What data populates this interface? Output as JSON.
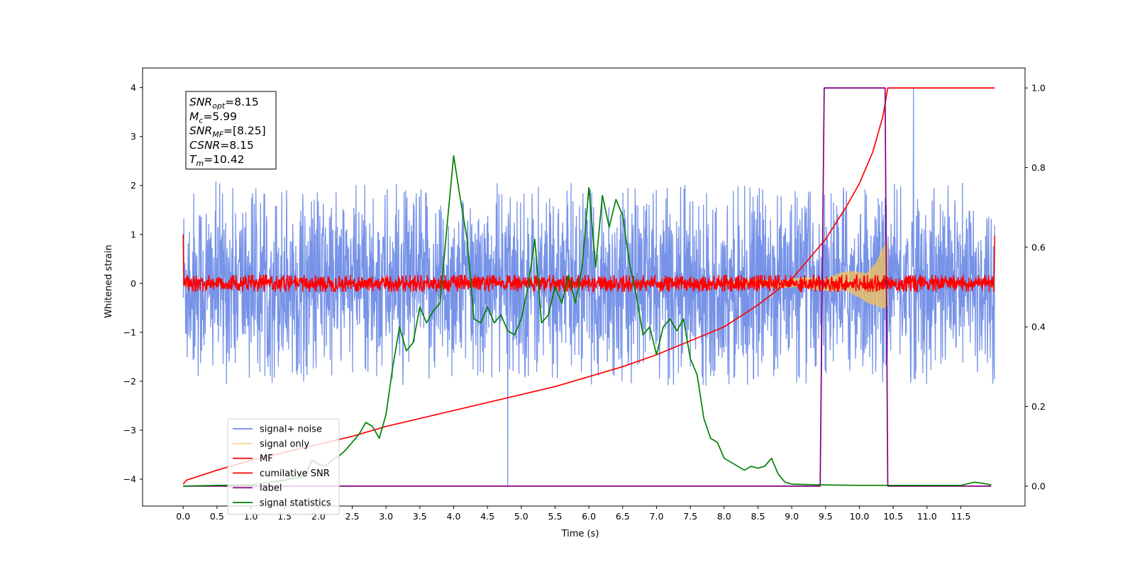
{
  "chart_data": {
    "type": "line",
    "xlabel": "Time (s)",
    "ylabel": "Whitened strain",
    "xlim": [
      -0.6,
      12.45
    ],
    "ylim": [
      -4.55,
      4.4
    ],
    "ylim_right": [
      -0.05,
      1.05
    ],
    "x_ticks": [
      0.0,
      0.5,
      1.0,
      1.5,
      2.0,
      2.5,
      3.0,
      3.5,
      4.0,
      4.5,
      5.0,
      5.5,
      6.0,
      6.5,
      7.0,
      7.5,
      8.0,
      8.5,
      9.0,
      9.5,
      10.0,
      10.5,
      11.0,
      11.5
    ],
    "x_tick_labels": [
      "0.0",
      "0.5",
      "1.0",
      "1.5",
      "2.0",
      "2.5",
      "3.0",
      "3.5",
      "4.0",
      "4.5",
      "5.0",
      "5.5",
      "6.0",
      "6.5",
      "7.0",
      "7.5",
      "8.0",
      "8.5",
      "9.0",
      "9.5",
      "10.0",
      "10.5",
      "11.0",
      "11.5"
    ],
    "y_ticks": [
      -4,
      -3,
      -2,
      -1,
      0,
      1,
      2,
      3,
      4
    ],
    "y_tick_labels": [
      "−4",
      "−3",
      "−2",
      "−1",
      "0",
      "1",
      "2",
      "3",
      "4"
    ],
    "y_ticks_right": [
      0.0,
      0.2,
      0.4,
      0.6,
      0.8,
      1.0
    ],
    "y_tick_labels_right": [
      "0.0",
      "0.2",
      "0.4",
      "0.6",
      "0.8",
      "1.0"
    ],
    "legend_position": "lower-left",
    "series": [
      {
        "name": "signal+ noise",
        "axis": "left",
        "color": "#6b8ae6",
        "kind": "noise",
        "x_range": [
          0.0,
          12.0
        ],
        "spread": 1.9,
        "extremes": [
          -4.15,
          4.0
        ]
      },
      {
        "name": "signal only",
        "axis": "left",
        "color": "#f5c35a",
        "kind": "chirp",
        "x_range": [
          8.0,
          10.42
        ],
        "amplitude": [
          [
            8.0,
            0.05
          ],
          [
            9.0,
            0.1
          ],
          [
            9.5,
            0.15
          ],
          [
            10.0,
            0.3
          ],
          [
            10.25,
            0.5
          ],
          [
            10.42,
            0.9
          ]
        ]
      },
      {
        "name": "MF",
        "axis": "left",
        "color": "#ff0000",
        "kind": "noise",
        "x_range": [
          0.0,
          12.0
        ],
        "spread": 0.17,
        "edge_values": [
          1.0,
          0.98
        ]
      },
      {
        "name": "cumilative SNR",
        "axis": "right",
        "color": "#ff0000",
        "x": [
          0.0,
          0.05,
          0.5,
          1.0,
          1.5,
          2.0,
          2.5,
          3.0,
          3.5,
          4.0,
          4.5,
          5.0,
          5.5,
          6.0,
          6.5,
          7.0,
          7.5,
          8.0,
          8.5,
          9.0,
          9.5,
          9.8,
          10.0,
          10.2,
          10.35,
          10.42,
          11.0,
          12.0
        ],
        "y": [
          0.005,
          0.015,
          0.04,
          0.065,
          0.085,
          0.105,
          0.125,
          0.15,
          0.17,
          0.19,
          0.21,
          0.23,
          0.25,
          0.275,
          0.3,
          0.33,
          0.365,
          0.4,
          0.455,
          0.52,
          0.62,
          0.7,
          0.76,
          0.84,
          0.93,
          1.0,
          1.0,
          1.0
        ]
      },
      {
        "name": "label",
        "axis": "right",
        "color": "#800080",
        "x": [
          0.0,
          9.42,
          9.48,
          10.38,
          10.42,
          11.95
        ],
        "y": [
          0.0,
          0.0,
          1.0,
          1.0,
          0.0,
          0.0
        ]
      },
      {
        "name": "signal statistics",
        "axis": "right",
        "color": "#008000",
        "x": [
          0.0,
          0.5,
          1.0,
          1.5,
          1.8,
          1.9,
          2.0,
          2.1,
          2.2,
          2.3,
          2.4,
          2.5,
          2.6,
          2.7,
          2.8,
          2.9,
          3.0,
          3.1,
          3.2,
          3.3,
          3.4,
          3.5,
          3.6,
          3.7,
          3.8,
          3.9,
          4.0,
          4.1,
          4.2,
          4.3,
          4.4,
          4.5,
          4.6,
          4.7,
          4.8,
          4.9,
          5.0,
          5.1,
          5.2,
          5.3,
          5.4,
          5.5,
          5.6,
          5.7,
          5.8,
          5.9,
          6.0,
          6.1,
          6.2,
          6.3,
          6.4,
          6.5,
          6.6,
          6.7,
          6.8,
          6.9,
          7.0,
          7.1,
          7.2,
          7.3,
          7.4,
          7.5,
          7.6,
          7.7,
          7.8,
          7.9,
          8.0,
          8.1,
          8.2,
          8.3,
          8.4,
          8.5,
          8.6,
          8.7,
          8.8,
          8.9,
          9.0,
          9.2,
          9.5,
          10.0,
          10.5,
          11.0,
          11.5,
          11.7,
          11.8,
          11.95
        ],
        "y": [
          0.0,
          0.002,
          0.003,
          0.015,
          0.025,
          0.065,
          0.055,
          0.05,
          0.065,
          0.075,
          0.09,
          0.11,
          0.13,
          0.16,
          0.15,
          0.12,
          0.18,
          0.3,
          0.4,
          0.34,
          0.36,
          0.45,
          0.41,
          0.44,
          0.46,
          0.65,
          0.83,
          0.72,
          0.62,
          0.42,
          0.41,
          0.45,
          0.41,
          0.43,
          0.39,
          0.38,
          0.42,
          0.5,
          0.62,
          0.41,
          0.43,
          0.5,
          0.46,
          0.53,
          0.46,
          0.55,
          0.75,
          0.55,
          0.73,
          0.65,
          0.72,
          0.68,
          0.56,
          0.48,
          0.38,
          0.4,
          0.33,
          0.4,
          0.42,
          0.39,
          0.42,
          0.32,
          0.28,
          0.17,
          0.12,
          0.11,
          0.07,
          0.06,
          0.05,
          0.04,
          0.05,
          0.045,
          0.05,
          0.07,
          0.03,
          0.01,
          0.005,
          0.004,
          0.003,
          0.002,
          0.002,
          0.002,
          0.002,
          0.01,
          0.008,
          0.003
        ]
      }
    ],
    "annotation": {
      "lines": [
        {
          "main": "SNR",
          "sub": "opt",
          "value": "=8.15"
        },
        {
          "main": "M",
          "sub": "c",
          "value": "=5.99"
        },
        {
          "main": "SNR",
          "sub": "MF",
          "value": "=[8.25]"
        },
        {
          "main": "CSNR",
          "sub": "",
          "value": "=8.15"
        },
        {
          "main": "T",
          "sub": "m",
          "value": "=10.42"
        }
      ]
    }
  }
}
